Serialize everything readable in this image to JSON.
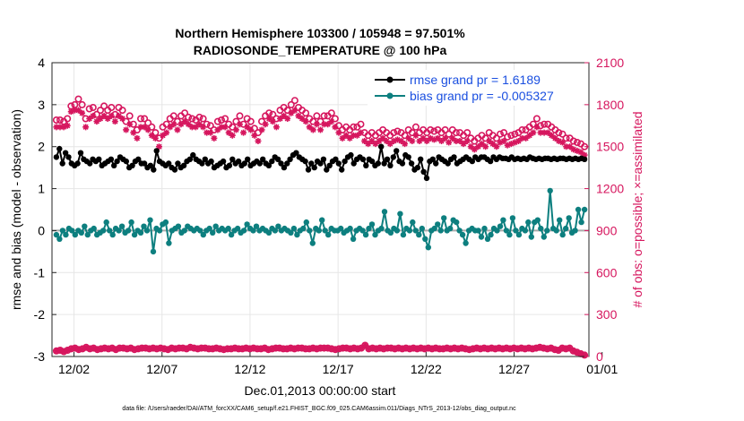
{
  "chart_data": {
    "type": "line",
    "title": "Northern Hemisphere 103300 / 105948 = 97.501%",
    "subtitle": "RADIOSONDE_TEMPERATURE @ 100 hPa",
    "xlabel": "Dec.01,2013 00:00:00 start",
    "ylabel": "rmse and bias (model - observation)",
    "y2label": "# of obs: o=possible; ×=assimilated",
    "footnote": "data file: /Users/raeder/DAI/ATM_forcXX/CAM6_setup/f.e21.FHIST_BGC.f09_025.CAM6assim.011/Diags_NTrS_2013-12/obs_diag_output.nc",
    "xlim": [
      0.75,
      31.25
    ],
    "ylim": [
      -3,
      4
    ],
    "y2lim": [
      0,
      2100
    ],
    "xticks": [
      2,
      7,
      12,
      17,
      22,
      27,
      32
    ],
    "xticklabels": [
      "12/02",
      "12/07",
      "12/12",
      "12/17",
      "12/22",
      "12/27",
      "01/01"
    ],
    "yticks": [
      -3,
      -2,
      -1,
      0,
      1,
      2,
      3,
      4
    ],
    "yticklabels": [
      "-3",
      "-2",
      "-1",
      "0",
      "1",
      "2",
      "3",
      "4"
    ],
    "y2ticks": [
      0,
      300,
      600,
      900,
      1200,
      1500,
      1800,
      2100
    ],
    "y2ticklabels": [
      "0",
      "300",
      "600",
      "900",
      "1200",
      "1500",
      "1800",
      "2100"
    ],
    "grid": true,
    "zero_line": 0,
    "legend": {
      "placement": "top-right",
      "entries": [
        "rmse grand pr = 1.6189",
        "bias grand pr = -0.005327"
      ]
    },
    "colors": {
      "rmse": "#000000",
      "bias": "#0d7f7f",
      "obs": "#d6165e",
      "zero": "#aaaaaa",
      "grid": "#e6e6e6",
      "legend_text": "#1a4fe0"
    },
    "x_step": 0.25,
    "x_start": 1.0,
    "series": [
      {
        "name": "rmse grand pr = 1.6189",
        "axis": "left",
        "marker": "circle",
        "values": [
          1.75,
          1.95,
          1.6,
          1.85,
          1.75,
          1.6,
          1.55,
          1.6,
          1.85,
          1.7,
          1.65,
          1.6,
          1.7,
          1.65,
          1.7,
          1.55,
          1.6,
          1.65,
          1.7,
          1.55,
          1.65,
          1.75,
          1.7,
          1.65,
          1.5,
          1.55,
          1.65,
          1.7,
          1.6,
          1.6,
          1.5,
          1.55,
          1.45,
          1.9,
          1.65,
          1.6,
          1.55,
          1.6,
          1.5,
          1.45,
          1.6,
          1.5,
          1.55,
          1.65,
          1.7,
          1.8,
          1.7,
          1.65,
          1.6,
          1.7,
          1.6,
          1.65,
          1.5,
          1.55,
          1.6,
          1.65,
          1.5,
          1.55,
          1.7,
          1.6,
          1.65,
          1.55,
          1.6,
          1.7,
          1.55,
          1.6,
          1.65,
          1.6,
          1.7,
          1.6,
          1.55,
          1.65,
          1.75,
          1.7,
          1.6,
          1.5,
          1.6,
          1.7,
          1.8,
          1.85,
          1.75,
          1.7,
          1.65,
          1.45,
          1.6,
          1.5,
          1.65,
          1.6,
          1.7,
          1.45,
          1.55,
          1.65,
          1.7,
          1.6,
          1.45,
          1.65,
          1.75,
          1.8,
          1.6,
          1.7,
          1.75,
          1.7,
          1.55,
          1.7,
          1.65,
          1.55,
          1.6,
          2.0,
          1.6,
          1.7,
          1.55,
          1.75,
          1.9,
          1.65,
          1.6,
          1.8,
          1.75,
          1.6,
          1.45,
          1.5,
          1.7,
          1.4,
          1.25,
          1.65,
          1.7,
          1.6,
          1.75,
          1.7,
          1.65,
          1.6,
          1.7,
          1.75,
          1.6,
          1.65,
          1.7,
          1.75,
          1.7,
          1.65,
          1.75,
          1.7,
          1.75,
          1.75,
          1.7,
          1.65,
          1.75,
          1.7,
          1.75,
          1.72,
          1.72,
          1.7,
          1.75,
          1.7,
          1.72,
          1.7,
          1.72,
          1.7,
          1.75,
          1.72,
          1.7,
          1.72,
          1.7,
          1.72,
          1.72,
          1.7,
          1.72,
          1.7,
          1.72,
          1.72,
          1.7,
          1.72,
          1.7,
          1.72,
          1.7,
          1.72,
          1.7
        ]
      },
      {
        "name": "bias grand pr = -0.005327",
        "axis": "left",
        "marker": "circle",
        "values": [
          -0.1,
          -0.2,
          0.0,
          -0.1,
          0.05,
          0.0,
          -0.1,
          0.0,
          -0.05,
          0.1,
          -0.1,
          0.0,
          0.05,
          -0.1,
          -0.05,
          0.0,
          0.2,
          0.0,
          -0.1,
          0.05,
          0.0,
          0.1,
          -0.05,
          0.0,
          0.2,
          -0.1,
          0.0,
          -0.05,
          0.1,
          0.0,
          0.25,
          -0.5,
          0.05,
          0.0,
          0.15,
          0.2,
          -0.3,
          0.0,
          0.05,
          0.1,
          -0.05,
          0.0,
          0.1,
          0.05,
          0.0,
          0.05,
          0.0,
          -0.1,
          0.0,
          0.05,
          -0.05,
          0.1,
          0.0,
          0.05,
          0.0,
          0.05,
          -0.1,
          0.0,
          0.05,
          -0.05,
          0.0,
          0.15,
          0.05,
          0.0,
          0.1,
          0.0,
          0.05,
          0.0,
          -0.05,
          0.05,
          0.0,
          0.1,
          0.0,
          0.05,
          0.0,
          -0.05,
          0.05,
          -0.1,
          0.0,
          0.05,
          0.2,
          0.0,
          -0.3,
          0.05,
          0.0,
          0.25,
          0.0,
          -0.1,
          0.05,
          0.0,
          0.0,
          0.05,
          -0.05,
          0.0,
          0.05,
          -0.2,
          0.0,
          0.05,
          0.0,
          -0.1,
          0.05,
          0.15,
          -0.1,
          0.0,
          0.05,
          0.45,
          0.0,
          -0.05,
          0.05,
          0.0,
          0.4,
          -0.1,
          0.05,
          0.0,
          0.2,
          0.0,
          -0.1,
          0.05,
          -0.2,
          -0.4,
          0.0,
          0.05,
          0.15,
          0.0,
          0.3,
          0.0,
          0.05,
          0.25,
          0.2,
          0.0,
          -0.1,
          -0.3,
          0.0,
          0.05,
          0.0,
          0.0,
          -0.15,
          0.05,
          -0.2,
          -0.1,
          0.05,
          0.0,
          0.1,
          0.25,
          0.0,
          -0.1,
          0.3,
          0.0,
          -0.1,
          0.05,
          0.0,
          0.2,
          -0.15,
          0.2,
          0.25,
          0.05,
          -0.15,
          0.0,
          0.95,
          0.05,
          0.0,
          0.25,
          -0.1,
          0.05,
          0.3,
          -0.05,
          0.0,
          0.5,
          0.2,
          0.5
        ]
      },
      {
        "name": "# of obs possible",
        "axis": "right",
        "marker": "circle-open",
        "values": [
          1690,
          1690,
          1680,
          1700,
          1790,
          1800,
          1840,
          1800,
          1700,
          1770,
          1780,
          1730,
          1760,
          1790,
          1760,
          1780,
          1730,
          1780,
          1760,
          1680,
          1720,
          1660,
          1620,
          1700,
          1700,
          1670,
          1640,
          1600,
          1560,
          1640,
          1660,
          1700,
          1720,
          1680,
          1720,
          1740,
          1710,
          1700,
          1690,
          1710,
          1700,
          1660,
          1650,
          1620,
          1680,
          1690,
          1700,
          1660,
          1640,
          1680,
          1720,
          1660,
          1700,
          1680,
          1630,
          1600,
          1680,
          1720,
          1740,
          1730,
          1700,
          1760,
          1780,
          1760,
          1800,
          1830,
          1780,
          1760,
          1740,
          1700,
          1680,
          1720,
          1680,
          1720,
          1720,
          1740,
          1700,
          1650,
          1620,
          1640,
          1620,
          1640,
          1640,
          1660,
          1600,
          1580,
          1600,
          1580,
          1600,
          1620,
          1600,
          1580,
          1600,
          1610,
          1600,
          1580,
          1620,
          1600,
          1640,
          1600,
          1620,
          1600,
          1620,
          1610,
          1620,
          1600,
          1620,
          1590,
          1620,
          1600,
          1600,
          1580,
          1600,
          1560,
          1540,
          1560,
          1580,
          1560,
          1600,
          1580,
          1560,
          1590,
          1600,
          1570,
          1580,
          1590,
          1600,
          1620,
          1620,
          1640,
          1660,
          1700,
          1650,
          1660,
          1660,
          1640,
          1620,
          1600,
          1590,
          1560,
          1560,
          1540,
          1530,
          1520,
          1500
        ]
      },
      {
        "name": "# of obs assimilated",
        "axis": "right",
        "marker": "asterisk",
        "values": [
          1640,
          1640,
          1640,
          1650,
          1750,
          1760,
          1760,
          1740,
          1640,
          1700,
          1720,
          1680,
          1700,
          1720,
          1700,
          1720,
          1680,
          1720,
          1700,
          1620,
          1660,
          1600,
          1560,
          1640,
          1640,
          1620,
          1580,
          1560,
          1500,
          1580,
          1600,
          1640,
          1660,
          1620,
          1660,
          1680,
          1660,
          1640,
          1640,
          1660,
          1640,
          1600,
          1600,
          1560,
          1620,
          1640,
          1640,
          1600,
          1580,
          1620,
          1660,
          1600,
          1640,
          1620,
          1580,
          1540,
          1620,
          1660,
          1700,
          1680,
          1640,
          1700,
          1720,
          1700,
          1740,
          1760,
          1720,
          1700,
          1680,
          1640,
          1620,
          1660,
          1620,
          1660,
          1660,
          1680,
          1640,
          1600,
          1560,
          1580,
          1560,
          1580,
          1580,
          1600,
          1540,
          1520,
          1540,
          1520,
          1540,
          1560,
          1540,
          1520,
          1540,
          1550,
          1540,
          1520,
          1560,
          1540,
          1580,
          1540,
          1560,
          1540,
          1560,
          1550,
          1560,
          1540,
          1560,
          1530,
          1560,
          1540,
          1540,
          1520,
          1540,
          1500,
          1480,
          1500,
          1520,
          1500,
          1540,
          1520,
          1500,
          1530,
          1540,
          1510,
          1520,
          1530,
          1540,
          1560,
          1560,
          1580,
          1600,
          1640,
          1600,
          1600,
          1600,
          1580,
          1560,
          1540,
          1530,
          1500,
          1500,
          1480,
          1470,
          1460,
          1440
        ]
      },
      {
        "name": "# of obs possible (low)",
        "axis": "right",
        "marker": "circle-open",
        "values": [
          40,
          45,
          35,
          45,
          55,
          60,
          50,
          55,
          65,
          55,
          60,
          50,
          55,
          60,
          55,
          60,
          50,
          60,
          60,
          55,
          60,
          50,
          55,
          60,
          60,
          55,
          60,
          55,
          60,
          55,
          50,
          60,
          55,
          60,
          60,
          55,
          65,
          60,
          55,
          60,
          60,
          55,
          55,
          60,
          55,
          50,
          55,
          55,
          60,
          55,
          55,
          60,
          55,
          60,
          55,
          55,
          60,
          50,
          55,
          60,
          60,
          55,
          55,
          60,
          55,
          60,
          60,
          55,
          55,
          60,
          55,
          60,
          60,
          60,
          55,
          50,
          55,
          60,
          60,
          55,
          60,
          55,
          60,
          80,
          55,
          60,
          55,
          60,
          55,
          60,
          60,
          55,
          60,
          55,
          60,
          55,
          60,
          55,
          60,
          55,
          60,
          55,
          60,
          55,
          55,
          60,
          55,
          60,
          55,
          60,
          55,
          50,
          55,
          60,
          55,
          60,
          55,
          60,
          55,
          60,
          55,
          60,
          55,
          60,
          55,
          60,
          55,
          60,
          55,
          60,
          65,
          60,
          55,
          60,
          50,
          45,
          60,
          55,
          60,
          40,
          30,
          20,
          10
        ]
      },
      {
        "name": "# of obs assimilated (low)",
        "axis": "right",
        "marker": "asterisk",
        "values": [
          40,
          45,
          35,
          45,
          55,
          60,
          50,
          55,
          65,
          55,
          60,
          50,
          55,
          60,
          55,
          60,
          50,
          60,
          60,
          55,
          60,
          50,
          55,
          60,
          60,
          55,
          60,
          55,
          60,
          55,
          50,
          60,
          55,
          60,
          60,
          55,
          65,
          60,
          55,
          60,
          60,
          55,
          55,
          60,
          55,
          50,
          55,
          55,
          60,
          55,
          55,
          60,
          55,
          60,
          55,
          55,
          60,
          50,
          55,
          60,
          60,
          55,
          55,
          60,
          55,
          60,
          60,
          55,
          55,
          60,
          55,
          60,
          60,
          60,
          55,
          50,
          55,
          60,
          60,
          55,
          60,
          55,
          60,
          80,
          55,
          60,
          55,
          60,
          55,
          60,
          60,
          55,
          60,
          55,
          60,
          55,
          60,
          55,
          60,
          55,
          60,
          55,
          60,
          55,
          55,
          60,
          55,
          60,
          55,
          60,
          55,
          50,
          55,
          60,
          55,
          60,
          55,
          60,
          55,
          60,
          55,
          60,
          55,
          60,
          55,
          60,
          55,
          60,
          55,
          60,
          65,
          60,
          55,
          60,
          50,
          45,
          60,
          55,
          60,
          40,
          30,
          20,
          10
        ]
      }
    ]
  }
}
